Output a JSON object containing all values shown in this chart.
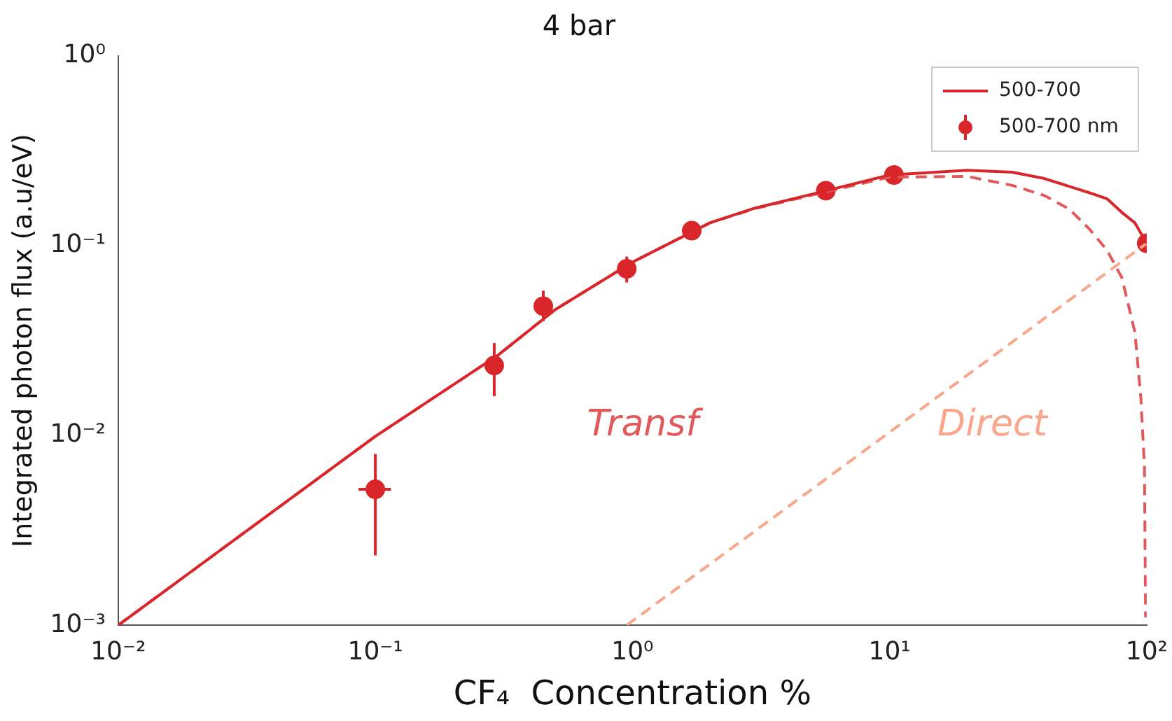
{
  "chart_data": {
    "type": "line",
    "title": "4 bar",
    "xlabel": "CF₄  Concentration %",
    "ylabel": "Integrated photon flux (a.u/eV)",
    "log": "xy",
    "xlim": [
      0.01,
      100
    ],
    "ylim": [
      0.001,
      1
    ],
    "xticks": [
      {
        "value": 0.01,
        "label": "10⁻²"
      },
      {
        "value": 0.1,
        "label": "10⁻¹"
      },
      {
        "value": 1,
        "label": "10⁰"
      },
      {
        "value": 10,
        "label": "10¹"
      },
      {
        "value": 100,
        "label": "10²"
      }
    ],
    "yticks": [
      {
        "value": 0.001,
        "label": "10⁻³"
      },
      {
        "value": 0.01,
        "label": "10⁻²"
      },
      {
        "value": 0.1,
        "label": "10⁻¹"
      },
      {
        "value": 1,
        "label": "10⁰"
      }
    ],
    "grid": false,
    "legend": "top right",
    "series": [
      {
        "name": "500-700",
        "type": "line",
        "color": "#d9262b",
        "line_style": "solid",
        "marker": "none",
        "x": [
          0.01,
          0.1,
          0.3,
          0.5,
          1,
          2,
          3,
          5,
          10,
          20,
          30,
          40,
          60,
          70,
          80,
          90,
          100
        ],
        "values": [
          0.001,
          0.0099,
          0.0265,
          0.046,
          0.082,
          0.132,
          0.158,
          0.187,
          0.236,
          0.25,
          0.244,
          0.226,
          0.19,
          0.177,
          0.15,
          0.132,
          0.103
        ]
      },
      {
        "type": "line",
        "color": "#e05a5c",
        "line_style": "dashed",
        "marker": "none",
        "x": [
          0.01,
          0.1,
          0.3,
          0.5,
          1,
          2,
          3,
          5,
          10,
          20,
          30,
          40,
          50,
          60,
          70,
          80,
          90,
          95,
          98,
          99
        ],
        "values": [
          0.001,
          0.0099,
          0.0265,
          0.046,
          0.082,
          0.132,
          0.157,
          0.185,
          0.23,
          0.232,
          0.208,
          0.184,
          0.156,
          0.122,
          0.095,
          0.068,
          0.035,
          0.0155,
          0.0068,
          0.0011
        ]
      },
      {
        "type": "line",
        "color": "#f9a68a",
        "line_style": "dashed",
        "marker": "none",
        "x": [
          0.95,
          100
        ],
        "values": [
          0.001,
          0.103
        ]
      },
      {
        "name": "500-700 nm",
        "type": "scatter",
        "color": "#d9262b",
        "marker": "circle",
        "x": [
          0.1,
          0.29,
          0.45,
          0.95,
          1.7,
          5.65,
          10.4,
          100
        ],
        "values": [
          0.0052,
          0.0234,
          0.048,
          0.0756,
          0.12,
          0.195,
          0.236,
          0.103
        ],
        "errors": [
          [
            0.00233,
            0.008
          ],
          [
            0.0161,
            0.0307
          ],
          [
            0.04,
            0.058
          ],
          [
            0.064,
            0.0877
          ],
          null,
          null,
          null,
          null
        ],
        "xerrors": [
          [
            0.086,
            0.115
          ],
          null,
          null,
          null,
          null,
          null,
          null,
          null
        ]
      }
    ],
    "annotations": [
      "Transf",
      "Direct"
    ]
  }
}
